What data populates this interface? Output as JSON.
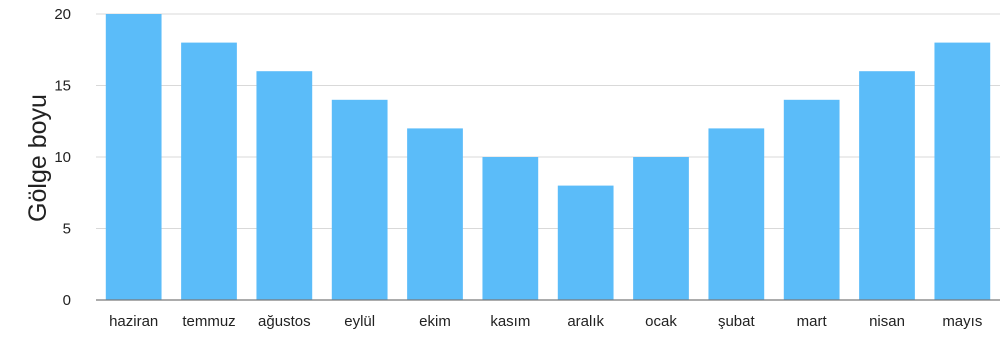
{
  "chart_data": {
    "type": "bar",
    "title": "",
    "xlabel": "",
    "ylabel": "Gölge boyu",
    "categories": [
      "haziran",
      "temmuz",
      "ağustos",
      "eylül",
      "ekim",
      "kasım",
      "aralık",
      "ocak",
      "şubat",
      "mart",
      "nisan",
      "mayıs"
    ],
    "values": [
      20,
      18,
      16,
      14,
      12,
      10,
      8,
      10,
      12,
      14,
      16,
      18
    ],
    "yticks": [
      0,
      5,
      10,
      15,
      20
    ],
    "ylim": [
      0,
      20
    ],
    "grid": true,
    "legend": "none",
    "colors": {
      "bar": "#5bbcf9",
      "grid": "#d9d9d9",
      "axis": "#7a7a7a",
      "text": "#222222"
    }
  }
}
